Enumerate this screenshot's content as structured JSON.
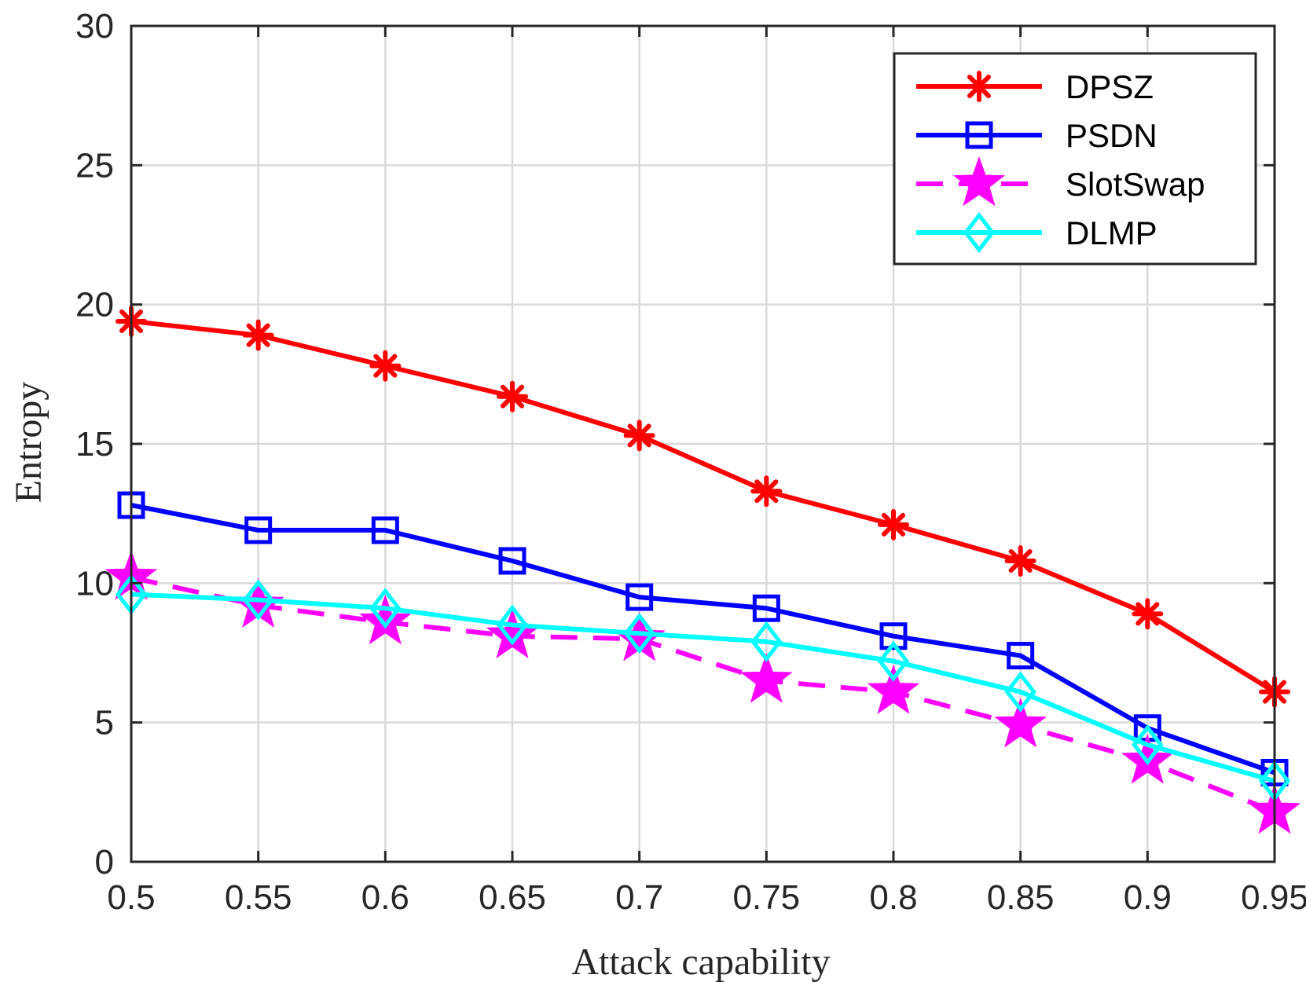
{
  "chart_data": {
    "type": "line",
    "xlabel": "Attack capability",
    "ylabel": "Entropy",
    "x": [
      0.5,
      0.55,
      0.6,
      0.65,
      0.7,
      0.75,
      0.8,
      0.85,
      0.9,
      0.95
    ],
    "x_tick_labels": [
      "0.5",
      "0.55",
      "0.6",
      "0.65",
      "0.7",
      "0.75",
      "0.8",
      "0.85",
      "0.9",
      "0.95"
    ],
    "y_ticks": [
      0,
      5,
      10,
      15,
      20,
      25,
      30
    ],
    "y_tick_labels": [
      "0",
      "5",
      "10",
      "15",
      "20",
      "25",
      "30"
    ],
    "xlim": [
      0.5,
      0.95
    ],
    "ylim": [
      0,
      30
    ],
    "grid": true,
    "legend_position": "top-right",
    "series": [
      {
        "name": "DPSZ",
        "color": "#ff0000",
        "marker": "asterisk",
        "line": "solid",
        "values": [
          19.4,
          18.9,
          17.8,
          16.7,
          15.3,
          13.3,
          12.1,
          10.8,
          8.9,
          6.1
        ]
      },
      {
        "name": "PSDN",
        "color": "#0000ff",
        "marker": "square",
        "line": "solid",
        "values": [
          12.8,
          11.9,
          11.9,
          10.8,
          9.5,
          9.1,
          8.1,
          7.4,
          4.8,
          3.2
        ]
      },
      {
        "name": "SlotSwap",
        "color": "#ff00ff",
        "marker": "star",
        "line": "dashed",
        "values": [
          10.2,
          9.2,
          8.6,
          8.1,
          8.0,
          6.5,
          6.1,
          4.9,
          3.6,
          1.8
        ]
      },
      {
        "name": "DLMP",
        "color": "#00ffff",
        "marker": "diamond",
        "line": "solid",
        "values": [
          9.6,
          9.4,
          9.1,
          8.5,
          8.2,
          7.9,
          7.2,
          6.1,
          4.2,
          2.9
        ]
      }
    ]
  }
}
